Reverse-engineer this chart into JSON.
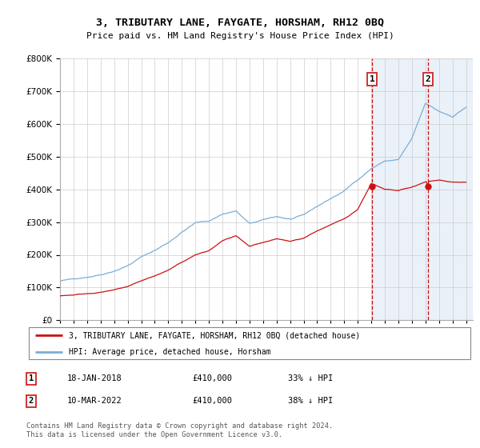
{
  "title": "3, TRIBUTARY LANE, FAYGATE, HORSHAM, RH12 0BQ",
  "subtitle": "Price paid vs. HM Land Registry's House Price Index (HPI)",
  "legend_label_red": "3, TRIBUTARY LANE, FAYGATE, HORSHAM, RH12 0BQ (detached house)",
  "legend_label_blue": "HPI: Average price, detached house, Horsham",
  "annotation1_date": "18-JAN-2018",
  "annotation1_price": "£410,000",
  "annotation1_hpi": "33% ↓ HPI",
  "annotation2_date": "10-MAR-2022",
  "annotation2_price": "£410,000",
  "annotation2_hpi": "38% ↓ HPI",
  "footer": "Contains HM Land Registry data © Crown copyright and database right 2024.\nThis data is licensed under the Open Government Licence v3.0.",
  "ylim": [
    0,
    800000
  ],
  "yticks": [
    0,
    100000,
    200000,
    300000,
    400000,
    500000,
    600000,
    700000,
    800000
  ],
  "hpi_color": "#7aaed6",
  "price_color": "#cc1111",
  "vline_color": "#cc1111",
  "shade_color": "#dde8f5",
  "grid_color": "#cccccc",
  "sale1_year": 2018.05,
  "sale2_year": 2022.19,
  "sale_price": 410000,
  "xmin": 1995.0,
  "xmax": 2025.5
}
